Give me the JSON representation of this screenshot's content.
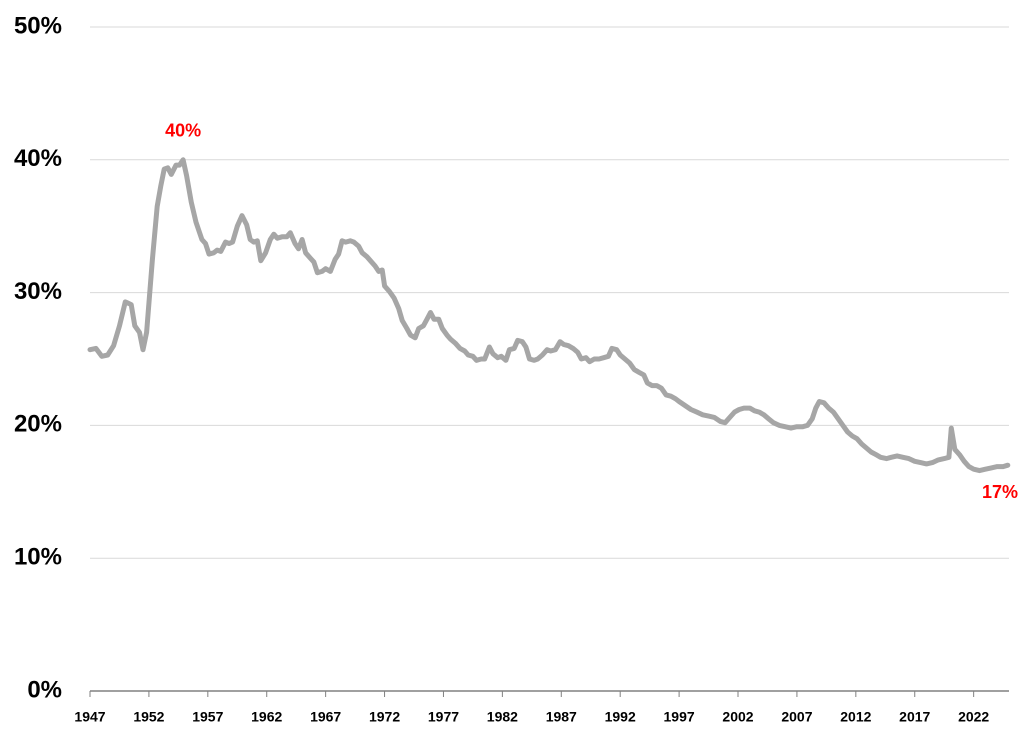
{
  "chart_data": {
    "type": "line",
    "x": [
      1947.0,
      1947.5,
      1948.0,
      1948.5,
      1949.0,
      1949.5,
      1950.0,
      1950.5,
      1950.8,
      1951.2,
      1951.5,
      1951.8,
      1952.3,
      1952.7,
      1953.0,
      1953.3,
      1953.6,
      1953.9,
      1954.3,
      1954.6,
      1954.9,
      1955.2,
      1955.6,
      1956.0,
      1956.5,
      1956.8,
      1957.1,
      1957.5,
      1957.8,
      1958.1,
      1958.5,
      1958.8,
      1959.1,
      1959.5,
      1959.9,
      1960.3,
      1960.6,
      1960.9,
      1961.2,
      1961.5,
      1961.9,
      1962.3,
      1962.6,
      1962.9,
      1963.3,
      1963.7,
      1964.0,
      1964.4,
      1964.7,
      1965.0,
      1965.3,
      1965.7,
      1966.0,
      1966.3,
      1966.7,
      1967.0,
      1967.4,
      1967.8,
      1968.1,
      1968.4,
      1968.7,
      1969.1,
      1969.4,
      1969.8,
      1970.1,
      1970.5,
      1970.8,
      1971.2,
      1971.5,
      1971.8,
      1972.0,
      1972.4,
      1972.8,
      1973.2,
      1973.5,
      1973.9,
      1974.2,
      1974.6,
      1974.9,
      1975.3,
      1975.6,
      1975.9,
      1976.2,
      1976.6,
      1976.9,
      1977.3,
      1977.6,
      1978.0,
      1978.4,
      1978.8,
      1979.1,
      1979.5,
      1979.8,
      1980.2,
      1980.5,
      1980.9,
      1981.2,
      1981.6,
      1981.9,
      1982.3,
      1982.6,
      1983.0,
      1983.3,
      1983.7,
      1984.0,
      1984.3,
      1984.7,
      1985.0,
      1985.4,
      1985.8,
      1986.1,
      1986.5,
      1986.9,
      1987.2,
      1987.6,
      1988.0,
      1988.4,
      1988.7,
      1989.1,
      1989.4,
      1989.8,
      1990.2,
      1990.6,
      1991.0,
      1991.3,
      1991.7,
      1992.0,
      1992.4,
      1992.8,
      1993.2,
      1993.6,
      1994.0,
      1994.3,
      1994.7,
      1995.1,
      1995.5,
      1995.9,
      1996.3,
      1996.7,
      1997.0,
      1997.5,
      1998.0,
      1998.5,
      1999.0,
      1999.5,
      2000.0,
      2000.5,
      2000.9,
      2001.3,
      2001.7,
      2002.1,
      2002.5,
      2003.0,
      2003.4,
      2003.8,
      2004.2,
      2004.6,
      2005.0,
      2005.5,
      2006.0,
      2006.5,
      2007.0,
      2007.5,
      2007.9,
      2008.3,
      2008.6,
      2008.9,
      2009.3,
      2009.7,
      2010.1,
      2010.5,
      2010.9,
      2011.3,
      2011.7,
      2012.1,
      2012.5,
      2012.9,
      2013.3,
      2013.7,
      2014.1,
      2014.6,
      2015.0,
      2015.5,
      2016.0,
      2016.5,
      2017.0,
      2017.5,
      2018.0,
      2018.5,
      2019.0,
      2019.5,
      2019.9,
      2020.1,
      2020.4,
      2020.8,
      2021.2,
      2021.6,
      2022.0,
      2022.5,
      2023.0,
      2023.5,
      2024.0,
      2024.5,
      2024.9
    ],
    "series": [
      {
        "color": "#a6a6a6",
        "values": [
          25.7,
          25.8,
          25.2,
          25.3,
          26.0,
          27.5,
          29.3,
          29.1,
          27.5,
          27.0,
          25.7,
          27.0,
          32.5,
          36.5,
          38.0,
          39.3,
          39.4,
          38.9,
          39.6,
          39.6,
          40.0,
          38.8,
          36.8,
          35.3,
          34.0,
          33.7,
          32.9,
          33.0,
          33.2,
          33.1,
          33.8,
          33.7,
          33.8,
          35.0,
          35.8,
          35.1,
          34.0,
          33.8,
          33.9,
          32.4,
          33.0,
          34.0,
          34.4,
          34.1,
          34.2,
          34.2,
          34.5,
          33.7,
          33.3,
          34.0,
          33.0,
          32.6,
          32.3,
          31.5,
          31.6,
          31.8,
          31.6,
          32.5,
          32.9,
          33.9,
          33.8,
          33.9,
          33.8,
          33.5,
          33.0,
          32.7,
          32.4,
          32.0,
          31.6,
          31.7,
          30.5,
          30.1,
          29.6,
          28.8,
          27.9,
          27.3,
          26.8,
          26.6,
          27.3,
          27.5,
          28.0,
          28.5,
          28.0,
          28.0,
          27.3,
          26.8,
          26.5,
          26.2,
          25.8,
          25.6,
          25.3,
          25.2,
          24.9,
          25.0,
          25.0,
          25.9,
          25.4,
          25.1,
          25.2,
          24.9,
          25.7,
          25.8,
          26.4,
          26.3,
          25.9,
          25.0,
          24.9,
          25.0,
          25.3,
          25.7,
          25.6,
          25.7,
          26.3,
          26.1,
          26.0,
          25.8,
          25.5,
          25.0,
          25.1,
          24.8,
          25.0,
          25.0,
          25.1,
          25.2,
          25.8,
          25.7,
          25.3,
          25.0,
          24.7,
          24.2,
          24.0,
          23.8,
          23.2,
          23.0,
          23.0,
          22.8,
          22.3,
          22.2,
          22.0,
          21.8,
          21.5,
          21.2,
          21.0,
          20.8,
          20.7,
          20.6,
          20.3,
          20.2,
          20.6,
          21.0,
          21.2,
          21.3,
          21.3,
          21.1,
          21.0,
          20.8,
          20.5,
          20.2,
          20.0,
          19.9,
          19.8,
          19.9,
          19.9,
          20.0,
          20.5,
          21.3,
          21.8,
          21.7,
          21.3,
          21.0,
          20.5,
          20.0,
          19.5,
          19.2,
          19.0,
          18.6,
          18.3,
          18.0,
          17.8,
          17.6,
          17.5,
          17.6,
          17.7,
          17.6,
          17.5,
          17.3,
          17.2,
          17.1,
          17.2,
          17.4,
          17.5,
          17.6,
          19.8,
          18.2,
          17.8,
          17.3,
          16.9,
          16.7,
          16.6,
          16.7,
          16.8,
          16.9,
          16.9,
          17.0
        ]
      }
    ],
    "xlim": [
      1947,
      2025
    ],
    "xticks": [
      1947,
      1952,
      1957,
      1962,
      1967,
      1972,
      1977,
      1982,
      1987,
      1992,
      1997,
      2002,
      2007,
      2012,
      2017,
      2022
    ],
    "ylim": [
      0,
      50
    ],
    "yticks": [
      {
        "value": 0,
        "label": "0%"
      },
      {
        "value": 10,
        "label": "10%"
      },
      {
        "value": 20,
        "label": "20%"
      },
      {
        "value": 30,
        "label": "30%"
      },
      {
        "value": 40,
        "label": "40%"
      },
      {
        "value": 50,
        "label": "50%"
      }
    ],
    "grid": true,
    "annotations": [
      {
        "text": "40%",
        "x": 1954.9,
        "y": 40,
        "color": "#ff0000",
        "position": "above"
      },
      {
        "text": "17%",
        "x": 2024.9,
        "y": 17,
        "color": "#ff0000",
        "position": "below"
      }
    ]
  }
}
